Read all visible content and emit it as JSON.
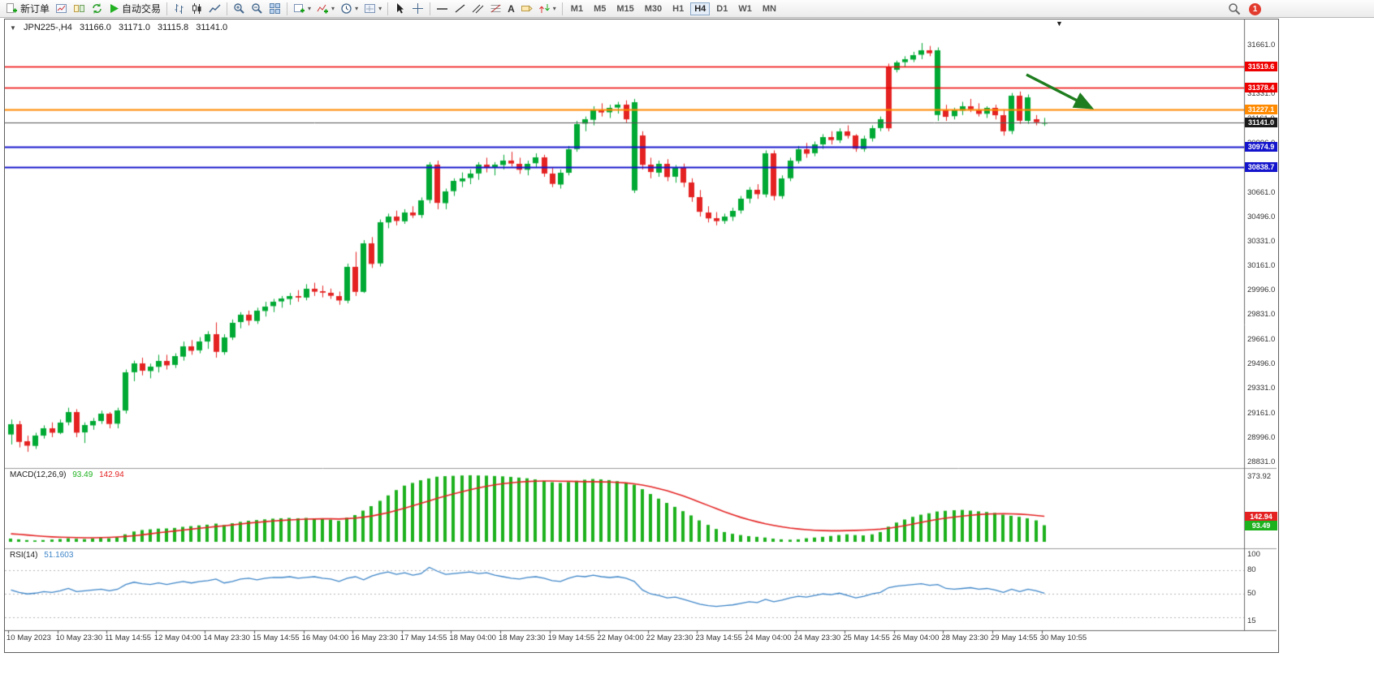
{
  "icons": {
    "triangle_down": "▼",
    "caret_down": "▾"
  },
  "toolbar": {
    "new_order": "新订单",
    "auto_trading": "自动交易",
    "text_tool": "A",
    "timeframes": [
      "M1",
      "M5",
      "M15",
      "M30",
      "H1",
      "H4",
      "D1",
      "W1",
      "MN"
    ],
    "active_timeframe": "H4",
    "notification_count": "1"
  },
  "symbol_bar": {
    "symbol": "JPN225-,H4",
    "open": "31166.0",
    "high": "31171.0",
    "low": "31115.8",
    "close": "31141.0"
  },
  "colors": {
    "bull": "#00a933",
    "bear": "#e42222",
    "macd_hist": "#1db11d",
    "macd_signal": "#e42222",
    "rsi": "#3d85c8",
    "hline_red": "#ee0000",
    "hline_orange": "#ff8a00",
    "hline_blue": "#1414cc",
    "price_line": "#555555",
    "badge_current_bg": "#1a1a1a",
    "arrow_green": "#1e7d1e"
  },
  "chart_data": {
    "type": "candlestick",
    "symbol": "JPN225-",
    "timeframe": "H4",
    "ohlc_display": {
      "open": 31166.0,
      "high": 31171.0,
      "low": 31115.8,
      "close": 31141.0
    },
    "price_min": 28790,
    "price_max": 31840,
    "price_axis_labels": [
      "31661.0",
      "31496.0",
      "31331.0",
      "31161.0",
      "30996.0",
      "30831.0",
      "30661.0",
      "30496.0",
      "30331.0",
      "30161.0",
      "29996.0",
      "29831.0",
      "29661.0",
      "29496.0",
      "29331.0",
      "29161.0",
      "28996.0",
      "28831.0"
    ],
    "hlines": [
      {
        "label": "31519.6",
        "price": 31519.6,
        "kind": "resistance",
        "color": "#ee0000",
        "width": 1.4
      },
      {
        "label": "31378.4",
        "price": 31378.4,
        "kind": "resistance",
        "color": "#ee0000",
        "width": 1.4
      },
      {
        "label": "31227.1",
        "price": 31227.1,
        "kind": "pivot",
        "color": "#ff8a00",
        "width": 2
      },
      {
        "label": "31141.0",
        "price": 31141.0,
        "kind": "current-price",
        "color": "#555555",
        "width": 1
      },
      {
        "label": "30974.9",
        "price": 30974.9,
        "kind": "support",
        "color": "#1414cc",
        "width": 2
      },
      {
        "label": "30838.7",
        "price": 30838.7,
        "kind": "support",
        "color": "#1414cc",
        "width": 2
      }
    ],
    "annotation": {
      "type": "arrow-down-right",
      "color": "#1e7d1e"
    },
    "bars_per_label": 6,
    "time_labels": [
      "10 May 2023",
      "10 May 23:30",
      "11 May 14:55",
      "12 May 04:00",
      "14 May 23:30",
      "15 May 14:55",
      "16 May 04:00",
      "16 May 23:30",
      "17 May 14:55",
      "18 May 04:00",
      "18 May 23:30",
      "19 May 14:55",
      "22 May 04:00",
      "22 May 23:30",
      "23 May 14:55",
      "24 May 04:00",
      "24 May 23:30",
      "25 May 14:55",
      "26 May 04:00",
      "28 May 23:30",
      "29 May 14:55",
      "30 May 10:55"
    ],
    "candles": [
      [
        29020,
        29120,
        28950,
        29090
      ],
      [
        29090,
        29110,
        28930,
        28970
      ],
      [
        28970,
        29010,
        28900,
        28940
      ],
      [
        28940,
        29030,
        28920,
        29010
      ],
      [
        29010,
        29080,
        28990,
        29060
      ],
      [
        29060,
        29100,
        29000,
        29030
      ],
      [
        29030,
        29120,
        29020,
        29100
      ],
      [
        29100,
        29200,
        29080,
        29170
      ],
      [
        29170,
        29190,
        29000,
        29030
      ],
      [
        29030,
        29100,
        28960,
        29080
      ],
      [
        29080,
        29130,
        29050,
        29110
      ],
      [
        29110,
        29180,
        29090,
        29160
      ],
      [
        29160,
        29170,
        29060,
        29090
      ],
      [
        29090,
        29200,
        29060,
        29180
      ],
      [
        29180,
        29460,
        29160,
        29440
      ],
      [
        29440,
        29520,
        29380,
        29500
      ],
      [
        29500,
        29540,
        29420,
        29450
      ],
      [
        29450,
        29500,
        29400,
        29480
      ],
      [
        29480,
        29560,
        29440,
        29520
      ],
      [
        29520,
        29560,
        29460,
        29490
      ],
      [
        29490,
        29570,
        29470,
        29550
      ],
      [
        29550,
        29650,
        29520,
        29620
      ],
      [
        29620,
        29660,
        29560,
        29590
      ],
      [
        29590,
        29680,
        29570,
        29650
      ],
      [
        29650,
        29720,
        29600,
        29700
      ],
      [
        29700,
        29780,
        29540,
        29580
      ],
      [
        29580,
        29700,
        29560,
        29680
      ],
      [
        29680,
        29800,
        29660,
        29780
      ],
      [
        29780,
        29850,
        29740,
        29830
      ],
      [
        29830,
        29860,
        29760,
        29790
      ],
      [
        29790,
        29880,
        29770,
        29860
      ],
      [
        29860,
        29920,
        29820,
        29890
      ],
      [
        29890,
        29940,
        29850,
        29920
      ],
      [
        29920,
        29960,
        29880,
        29940
      ],
      [
        29940,
        29980,
        29900,
        29960
      ],
      [
        29960,
        30000,
        29920,
        29950
      ],
      [
        29950,
        30040,
        29930,
        30010
      ],
      [
        30010,
        30050,
        29960,
        29990
      ],
      [
        29990,
        30030,
        29950,
        29980
      ],
      [
        29980,
        30010,
        29940,
        29960
      ],
      [
        29960,
        29990,
        29900,
        29930
      ],
      [
        29930,
        30180,
        29910,
        30160
      ],
      [
        30160,
        30260,
        29960,
        29990
      ],
      [
        29990,
        30340,
        29980,
        30320
      ],
      [
        30320,
        30360,
        30150,
        30180
      ],
      [
        30180,
        30480,
        30160,
        30460
      ],
      [
        30460,
        30520,
        30420,
        30500
      ],
      [
        30500,
        30540,
        30440,
        30470
      ],
      [
        30470,
        30550,
        30450,
        30530
      ],
      [
        30530,
        30570,
        30490,
        30510
      ],
      [
        30510,
        30630,
        30490,
        30610
      ],
      [
        30610,
        30870,
        30590,
        30850
      ],
      [
        30850,
        30880,
        30550,
        30590
      ],
      [
        30590,
        30690,
        30550,
        30670
      ],
      [
        30670,
        30760,
        30640,
        30740
      ],
      [
        30740,
        30800,
        30700,
        30760
      ],
      [
        30760,
        30820,
        30720,
        30790
      ],
      [
        30790,
        30870,
        30750,
        30850
      ],
      [
        30850,
        30900,
        30800,
        30830
      ],
      [
        30830,
        30870,
        30780,
        30850
      ],
      [
        30850,
        30920,
        30820,
        30880
      ],
      [
        30880,
        30940,
        30840,
        30860
      ],
      [
        30860,
        30900,
        30790,
        30820
      ],
      [
        30820,
        30880,
        30780,
        30860
      ],
      [
        30860,
        30930,
        30830,
        30900
      ],
      [
        30900,
        30920,
        30770,
        30790
      ],
      [
        30790,
        30830,
        30700,
        30720
      ],
      [
        30720,
        30820,
        30690,
        30800
      ],
      [
        30800,
        30980,
        30780,
        30960
      ],
      [
        30960,
        31150,
        30940,
        31130
      ],
      [
        31130,
        31180,
        31080,
        31160
      ],
      [
        31160,
        31250,
        31120,
        31230
      ],
      [
        31230,
        31270,
        31180,
        31210
      ],
      [
        31210,
        31260,
        31170,
        31240
      ],
      [
        31240,
        31280,
        31200,
        31260
      ],
      [
        31260,
        31290,
        31140,
        31160
      ],
      [
        30680,
        31300,
        30660,
        31280
      ],
      [
        31050,
        31080,
        30820,
        30850
      ],
      [
        30850,
        30900,
        30760,
        30800
      ],
      [
        30800,
        30880,
        30770,
        30860
      ],
      [
        30860,
        30890,
        30740,
        30770
      ],
      [
        30770,
        30850,
        30730,
        30830
      ],
      [
        30830,
        30860,
        30700,
        30730
      ],
      [
        30730,
        30760,
        30600,
        30630
      ],
      [
        30630,
        30680,
        30500,
        30530
      ],
      [
        30530,
        30570,
        30460,
        30490
      ],
      [
        30490,
        30530,
        30440,
        30470
      ],
      [
        30470,
        30520,
        30450,
        30500
      ],
      [
        30500,
        30560,
        30470,
        30540
      ],
      [
        30540,
        30640,
        30520,
        30620
      ],
      [
        30620,
        30700,
        30590,
        30680
      ],
      [
        30680,
        30720,
        30620,
        30650
      ],
      [
        30650,
        30950,
        30630,
        30930
      ],
      [
        30930,
        30950,
        30610,
        30640
      ],
      [
        30640,
        30780,
        30620,
        30760
      ],
      [
        30760,
        30900,
        30740,
        30880
      ],
      [
        30880,
        30980,
        30860,
        30960
      ],
      [
        30960,
        31000,
        30900,
        30930
      ],
      [
        30930,
        31010,
        30910,
        30990
      ],
      [
        30990,
        31060,
        30960,
        31040
      ],
      [
        31040,
        31080,
        30990,
        31020
      ],
      [
        31020,
        31100,
        31000,
        31080
      ],
      [
        31080,
        31120,
        31030,
        31050
      ],
      [
        31050,
        31060,
        30940,
        30960
      ],
      [
        30960,
        31050,
        30940,
        31030
      ],
      [
        31030,
        31120,
        31010,
        31100
      ],
      [
        31100,
        31180,
        31080,
        31160
      ],
      [
        31520,
        31540,
        31080,
        31100
      ],
      [
        31500,
        31560,
        31480,
        31550
      ],
      [
        31550,
        31590,
        31520,
        31570
      ],
      [
        31570,
        31620,
        31550,
        31600
      ],
      [
        31600,
        31680,
        31570,
        31630
      ],
      [
        31630,
        31660,
        31590,
        31610
      ],
      [
        31190,
        31650,
        31150,
        31630
      ],
      [
        31230,
        31260,
        31150,
        31180
      ],
      [
        31180,
        31240,
        31160,
        31220
      ],
      [
        31220,
        31280,
        31190,
        31250
      ],
      [
        31250,
        31300,
        31210,
        31230
      ],
      [
        31230,
        31270,
        31180,
        31200
      ],
      [
        31200,
        31250,
        31170,
        31240
      ],
      [
        31240,
        31260,
        31160,
        31190
      ],
      [
        31190,
        31230,
        31050,
        31080
      ],
      [
        31080,
        31340,
        31060,
        31320
      ],
      [
        31320,
        31350,
        31130,
        31150
      ],
      [
        31150,
        31330,
        31130,
        31310
      ],
      [
        31160,
        31190,
        31120,
        31140
      ],
      [
        31140,
        31171,
        31116,
        31141
      ]
    ],
    "macd": {
      "label_name": "MACD(12,26,9)",
      "value_main": "93.49",
      "value_signal": "142.94",
      "axis_max_label": "373.92",
      "scale_max": 400,
      "histogram": [
        18,
        14,
        10,
        8,
        10,
        13,
        16,
        20,
        17,
        15,
        18,
        22,
        20,
        26,
        42,
        58,
        66,
        70,
        74,
        75,
        78,
        84,
        88,
        92,
        96,
        102,
        94,
        104,
        112,
        118,
        122,
        126,
        130,
        132,
        134,
        132,
        134,
        131,
        128,
        124,
        118,
        135,
        150,
        175,
        200,
        230,
        260,
        290,
        315,
        330,
        345,
        355,
        365,
        368,
        370,
        372,
        373,
        372,
        371,
        369,
        367,
        364,
        360,
        356,
        350,
        342,
        334,
        330,
        335,
        342,
        348,
        352,
        350,
        346,
        340,
        332,
        320,
        295,
        268,
        242,
        218,
        196,
        172,
        148,
        120,
        95,
        72,
        55,
        45,
        38,
        32,
        28,
        24,
        18,
        14,
        12,
        14,
        20,
        24,
        28,
        33,
        38,
        42,
        38,
        36,
        42,
        55,
        85,
        108,
        125,
        140,
        152,
        160,
        170,
        174,
        177,
        179,
        175,
        171,
        167,
        162,
        152,
        146,
        140,
        132,
        120,
        93
      ],
      "signal": [
        45,
        42,
        38,
        34,
        31,
        28,
        26,
        25,
        24,
        23,
        23,
        24,
        25,
        27,
        30,
        34,
        39,
        45,
        51,
        56,
        61,
        66,
        71,
        76,
        81,
        86,
        90,
        95,
        100,
        105,
        109,
        113,
        117,
        120,
        123,
        125,
        127,
        128,
        129,
        129,
        128,
        130,
        133,
        138,
        145,
        154,
        164,
        176,
        189,
        202,
        216,
        230,
        244,
        257,
        269,
        281,
        292,
        302,
        311,
        319,
        326,
        331,
        335,
        338,
        340,
        341,
        341,
        340,
        339,
        338,
        337,
        337,
        336,
        335,
        333,
        330,
        325,
        318,
        309,
        298,
        286,
        272,
        257,
        240,
        222,
        204,
        186,
        168,
        152,
        137,
        124,
        112,
        101,
        92,
        84,
        77,
        72,
        68,
        65,
        63,
        62,
        62,
        63,
        64,
        66,
        68,
        71,
        76,
        83,
        91,
        100,
        109,
        118,
        126,
        133,
        139,
        144,
        149,
        153,
        156,
        157,
        158,
        157,
        155,
        152,
        148,
        143
      ]
    },
    "rsi": {
      "label_name": "RSI(14)",
      "value": "51.1603",
      "min": 15,
      "max": 100,
      "levels": [
        80,
        50,
        20
      ],
      "axis_labels": [
        {
          "v": 100,
          "t": "100"
        },
        {
          "v": 80,
          "t": "80"
        },
        {
          "v": 50,
          "t": "50"
        },
        {
          "v": 15,
          "t": "15"
        }
      ],
      "values": [
        55,
        52,
        50,
        51,
        53,
        52,
        54,
        57,
        53,
        54,
        55,
        56,
        54,
        56,
        62,
        65,
        63,
        62,
        64,
        62,
        64,
        66,
        64,
        66,
        67,
        69,
        64,
        66,
        69,
        70,
        68,
        70,
        71,
        71,
        72,
        70,
        71,
        72,
        70,
        69,
        66,
        70,
        72,
        68,
        73,
        76,
        78,
        75,
        77,
        74,
        76,
        84,
        79,
        75,
        76,
        77,
        78,
        76,
        77,
        74,
        72,
        70,
        69,
        71,
        72,
        70,
        67,
        66,
        70,
        73,
        72,
        74,
        72,
        71,
        72,
        70,
        66,
        55,
        50,
        48,
        45,
        46,
        43,
        40,
        37,
        35,
        34,
        35,
        36,
        38,
        40,
        39,
        43,
        40,
        42,
        45,
        47,
        46,
        48,
        50,
        49,
        51,
        48,
        45,
        47,
        50,
        52,
        58,
        60,
        61,
        62,
        63,
        61,
        62,
        57,
        56,
        57,
        58,
        56,
        57,
        55,
        52,
        56,
        53,
        56,
        54,
        51
      ]
    }
  }
}
